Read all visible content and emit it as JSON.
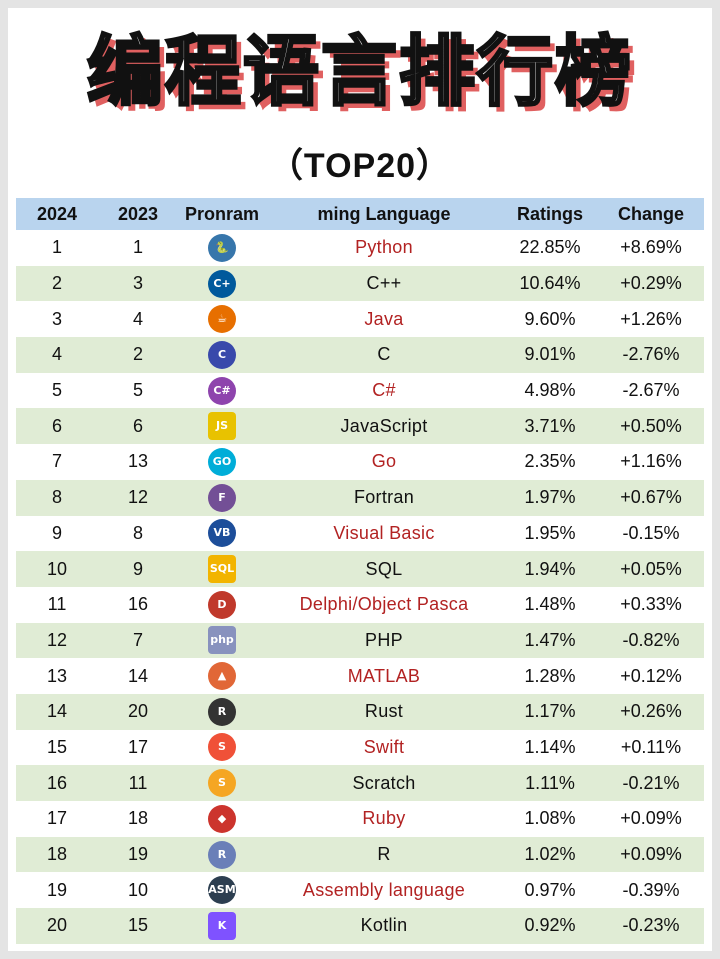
{
  "title": "编程语言排行榜",
  "subtitle": "（TOP20）",
  "headers": [
    "2024",
    "2023",
    "Pronram",
    "ming Language",
    "Ratings",
    "Change"
  ],
  "rows": [
    {
      "y2024": "1",
      "y2023": "1",
      "icon": "python-icon",
      "glyph": "🐍",
      "icon_color": "#3776ab",
      "language": "Python",
      "rating": "22.85%",
      "change": "+8.69%"
    },
    {
      "y2024": "2",
      "y2023": "3",
      "icon": "cpp-icon",
      "glyph": "C+",
      "icon_color": "#00599c",
      "language": "C++",
      "rating": "10.64%",
      "change": "+0.29%"
    },
    {
      "y2024": "3",
      "y2023": "4",
      "icon": "java-icon",
      "glyph": "☕",
      "icon_color": "#e76f00",
      "language": "Java",
      "rating": "9.60%",
      "change": "+1.26%"
    },
    {
      "y2024": "4",
      "y2023": "2",
      "icon": "c-icon",
      "glyph": "C",
      "icon_color": "#3949ab",
      "language": "C",
      "rating": "9.01%",
      "change": "-2.76%"
    },
    {
      "y2024": "5",
      "y2023": "5",
      "icon": "csharp-icon",
      "glyph": "C#",
      "icon_color": "#8e44ad",
      "language": "C#",
      "rating": "4.98%",
      "change": "-2.67%"
    },
    {
      "y2024": "6",
      "y2023": "6",
      "icon": "javascript-icon",
      "glyph": "JS",
      "icon_color": "#e8c200",
      "language": "JavaScript",
      "rating": "3.71%",
      "change": "+0.50%"
    },
    {
      "y2024": "7",
      "y2023": "13",
      "icon": "go-icon",
      "glyph": "GO",
      "icon_color": "#00add8",
      "language": "Go",
      "rating": "2.35%",
      "change": "+1.16%"
    },
    {
      "y2024": "8",
      "y2023": "12",
      "icon": "fortran-icon",
      "glyph": "F",
      "icon_color": "#734f96",
      "language": "Fortran",
      "rating": "1.97%",
      "change": "+0.67%"
    },
    {
      "y2024": "9",
      "y2023": "8",
      "icon": "visual-basic-icon",
      "glyph": "VB",
      "icon_color": "#1d4e9a",
      "language": "Visual Basic",
      "rating": "1.95%",
      "change": "-0.15%"
    },
    {
      "y2024": "10",
      "y2023": "9",
      "icon": "sql-icon",
      "glyph": "SQL",
      "icon_color": "#f2b400",
      "language": "SQL",
      "rating": "1.94%",
      "change": "+0.05%"
    },
    {
      "y2024": "11",
      "y2023": "16",
      "icon": "delphi-icon",
      "glyph": "D",
      "icon_color": "#c0392b",
      "language": "Delphi/Object Pasca",
      "rating": "1.48%",
      "change": "+0.33%"
    },
    {
      "y2024": "12",
      "y2023": "7",
      "icon": "php-icon",
      "glyph": "php",
      "icon_color": "#8892be",
      "language": "PHP",
      "rating": "1.47%",
      "change": "-0.82%"
    },
    {
      "y2024": "13",
      "y2023": "14",
      "icon": "matlab-icon",
      "glyph": "▲",
      "icon_color": "#e16737",
      "language": "MATLAB",
      "rating": "1.28%",
      "change": "+0.12%"
    },
    {
      "y2024": "14",
      "y2023": "20",
      "icon": "rust-icon",
      "glyph": "R",
      "icon_color": "#333333",
      "language": "Rust",
      "rating": "1.17%",
      "change": "+0.26%"
    },
    {
      "y2024": "15",
      "y2023": "17",
      "icon": "swift-icon",
      "glyph": "S",
      "icon_color": "#f05138",
      "language": "Swift",
      "rating": "1.14%",
      "change": "+0.11%"
    },
    {
      "y2024": "16",
      "y2023": "11",
      "icon": "scratch-icon",
      "glyph": "S",
      "icon_color": "#f5a623",
      "language": "Scratch",
      "rating": "1.11%",
      "change": "-0.21%"
    },
    {
      "y2024": "17",
      "y2023": "18",
      "icon": "ruby-icon",
      "glyph": "◆",
      "icon_color": "#cc342d",
      "language": "Ruby",
      "rating": "1.08%",
      "change": "+0.09%"
    },
    {
      "y2024": "18",
      "y2023": "19",
      "icon": "r-icon",
      "glyph": "R",
      "icon_color": "#6a7fb8",
      "language": "R",
      "rating": "1.02%",
      "change": "+0.09%"
    },
    {
      "y2024": "19",
      "y2023": "10",
      "icon": "assembly-icon",
      "glyph": "ASM",
      "icon_color": "#2c3e50",
      "language": "Assembly language",
      "rating": "0.97%",
      "change": "-0.39%"
    },
    {
      "y2024": "20",
      "y2023": "15",
      "icon": "kotlin-icon",
      "glyph": "K",
      "icon_color": "#7f52ff",
      "language": "Kotlin",
      "rating": "0.92%",
      "change": "-0.23%"
    }
  ]
}
